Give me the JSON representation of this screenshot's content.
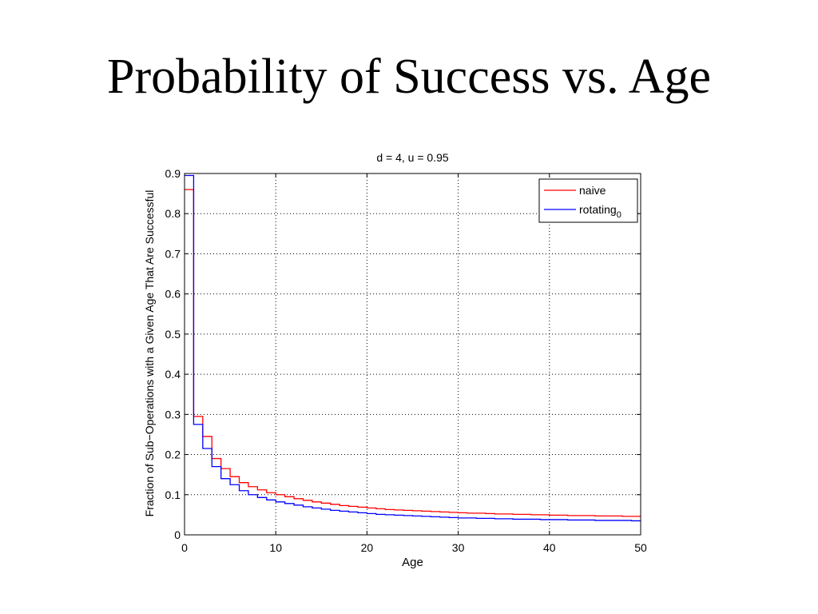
{
  "slide": {
    "title": "Probability of Success vs. Age"
  },
  "chart_data": {
    "type": "line",
    "step": true,
    "title": "d = 4, u = 0.95",
    "xlabel": "Age",
    "ylabel": "Fraction of Sub−Operations with a Given Age That Are Successful",
    "xlim": [
      0,
      50
    ],
    "ylim": [
      0,
      0.9
    ],
    "xticks": [
      0,
      10,
      20,
      30,
      40,
      50
    ],
    "yticks": [
      0,
      0.1,
      0.2,
      0.3,
      0.4,
      0.5,
      0.6,
      0.7,
      0.8,
      0.9
    ],
    "ytick_labels": [
      "0",
      "0.1",
      "0.2",
      "0.3",
      "0.4",
      "0.5",
      "0.6",
      "0.7",
      "0.8",
      "0.9"
    ],
    "grid": true,
    "legend_position": "top-right",
    "x": [
      0,
      1,
      2,
      3,
      4,
      5,
      6,
      7,
      8,
      9,
      10,
      11,
      12,
      13,
      14,
      15,
      16,
      17,
      18,
      19,
      20,
      21,
      22,
      23,
      24,
      25,
      26,
      27,
      28,
      29,
      30,
      31,
      32,
      33,
      34,
      35,
      36,
      37,
      38,
      39,
      40,
      41,
      42,
      43,
      44,
      45,
      46,
      47,
      48,
      49,
      50
    ],
    "series": [
      {
        "name": "naive",
        "color": "#ff0000",
        "values": [
          0.86,
          0.295,
          0.245,
          0.19,
          0.165,
          0.145,
          0.13,
          0.12,
          0.112,
          0.105,
          0.1,
          0.095,
          0.09,
          0.086,
          0.082,
          0.079,
          0.076,
          0.073,
          0.071,
          0.069,
          0.067,
          0.065,
          0.063,
          0.062,
          0.061,
          0.06,
          0.059,
          0.058,
          0.057,
          0.056,
          0.055,
          0.054,
          0.054,
          0.053,
          0.052,
          0.052,
          0.051,
          0.051,
          0.05,
          0.05,
          0.049,
          0.049,
          0.048,
          0.048,
          0.048,
          0.047,
          0.047,
          0.047,
          0.046,
          0.046,
          0.046
        ]
      },
      {
        "name": "rotating",
        "name_subscript": "0",
        "color": "#0000ff",
        "values": [
          0.895,
          0.275,
          0.215,
          0.17,
          0.14,
          0.125,
          0.11,
          0.1,
          0.093,
          0.087,
          0.082,
          0.078,
          0.074,
          0.07,
          0.067,
          0.064,
          0.061,
          0.059,
          0.057,
          0.055,
          0.053,
          0.051,
          0.05,
          0.049,
          0.048,
          0.047,
          0.046,
          0.045,
          0.044,
          0.043,
          0.042,
          0.042,
          0.041,
          0.041,
          0.04,
          0.04,
          0.039,
          0.039,
          0.039,
          0.038,
          0.038,
          0.038,
          0.037,
          0.037,
          0.037,
          0.036,
          0.036,
          0.036,
          0.036,
          0.035,
          0.035
        ]
      }
    ]
  }
}
